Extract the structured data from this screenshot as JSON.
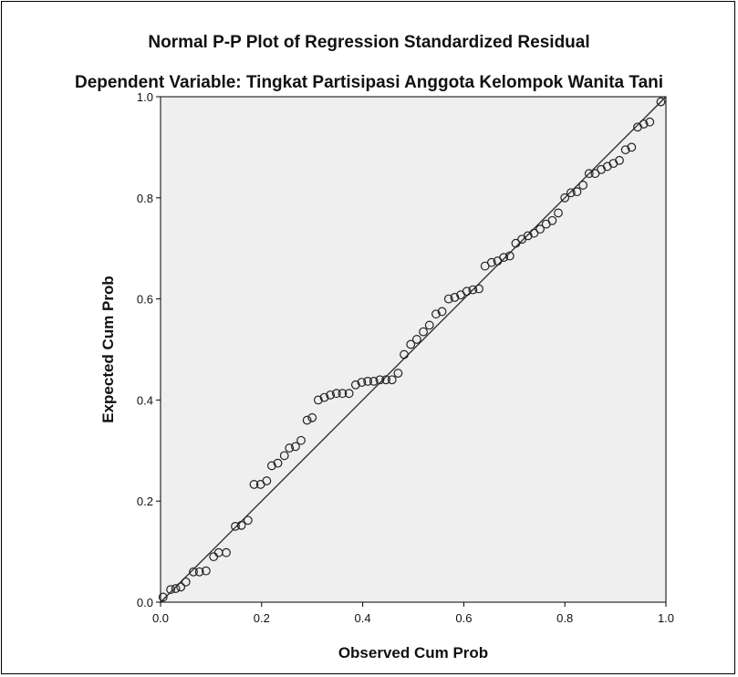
{
  "chart_data": {
    "type": "scatter",
    "title": "Normal P-P Plot of Regression Standardized Residual",
    "subtitle": "Dependent Variable: Tingkat Partisipasi Anggota Kelompok Wanita Tani",
    "xlabel": "Observed Cum Prob",
    "ylabel": "Expected Cum Prob",
    "xlim": [
      0,
      1
    ],
    "ylim": [
      0,
      1
    ],
    "xticks": [
      "0.0",
      "0.2",
      "0.4",
      "0.6",
      "0.8",
      "1.0"
    ],
    "yticks": [
      "0.0",
      "0.2",
      "0.4",
      "0.6",
      "0.8",
      "1.0"
    ],
    "reference_line": {
      "from": [
        0,
        0
      ],
      "to": [
        1,
        1
      ]
    },
    "plot_background": "#efefef",
    "point_color": "#222222",
    "points": [
      [
        0.005,
        0.01
      ],
      [
        0.02,
        0.025
      ],
      [
        0.03,
        0.027
      ],
      [
        0.04,
        0.03
      ],
      [
        0.05,
        0.04
      ],
      [
        0.065,
        0.06
      ],
      [
        0.077,
        0.06
      ],
      [
        0.09,
        0.062
      ],
      [
        0.105,
        0.09
      ],
      [
        0.115,
        0.098
      ],
      [
        0.13,
        0.098
      ],
      [
        0.148,
        0.15
      ],
      [
        0.16,
        0.152
      ],
      [
        0.173,
        0.162
      ],
      [
        0.185,
        0.233
      ],
      [
        0.198,
        0.233
      ],
      [
        0.21,
        0.24
      ],
      [
        0.22,
        0.27
      ],
      [
        0.232,
        0.275
      ],
      [
        0.245,
        0.29
      ],
      [
        0.255,
        0.305
      ],
      [
        0.267,
        0.308
      ],
      [
        0.278,
        0.32
      ],
      [
        0.29,
        0.36
      ],
      [
        0.3,
        0.365
      ],
      [
        0.312,
        0.4
      ],
      [
        0.324,
        0.405
      ],
      [
        0.336,
        0.41
      ],
      [
        0.348,
        0.413
      ],
      [
        0.36,
        0.413
      ],
      [
        0.373,
        0.413
      ],
      [
        0.386,
        0.43
      ],
      [
        0.398,
        0.435
      ],
      [
        0.41,
        0.437
      ],
      [
        0.422,
        0.437
      ],
      [
        0.434,
        0.44
      ],
      [
        0.446,
        0.44
      ],
      [
        0.458,
        0.44
      ],
      [
        0.47,
        0.453
      ],
      [
        0.482,
        0.49
      ],
      [
        0.495,
        0.51
      ],
      [
        0.507,
        0.52
      ],
      [
        0.52,
        0.535
      ],
      [
        0.532,
        0.548
      ],
      [
        0.545,
        0.57
      ],
      [
        0.557,
        0.575
      ],
      [
        0.57,
        0.6
      ],
      [
        0.582,
        0.603
      ],
      [
        0.594,
        0.608
      ],
      [
        0.606,
        0.615
      ],
      [
        0.618,
        0.618
      ],
      [
        0.63,
        0.62
      ],
      [
        0.642,
        0.665
      ],
      [
        0.655,
        0.672
      ],
      [
        0.667,
        0.675
      ],
      [
        0.679,
        0.682
      ],
      [
        0.691,
        0.685
      ],
      [
        0.703,
        0.71
      ],
      [
        0.715,
        0.718
      ],
      [
        0.727,
        0.725
      ],
      [
        0.739,
        0.73
      ],
      [
        0.751,
        0.738
      ],
      [
        0.763,
        0.748
      ],
      [
        0.775,
        0.755
      ],
      [
        0.787,
        0.77
      ],
      [
        0.8,
        0.8
      ],
      [
        0.812,
        0.81
      ],
      [
        0.824,
        0.812
      ],
      [
        0.836,
        0.825
      ],
      [
        0.848,
        0.848
      ],
      [
        0.86,
        0.848
      ],
      [
        0.872,
        0.856
      ],
      [
        0.884,
        0.862
      ],
      [
        0.896,
        0.868
      ],
      [
        0.908,
        0.874
      ],
      [
        0.92,
        0.895
      ],
      [
        0.932,
        0.9
      ],
      [
        0.944,
        0.94
      ],
      [
        0.956,
        0.946
      ],
      [
        0.968,
        0.95
      ],
      [
        0.99,
        0.99
      ]
    ]
  }
}
